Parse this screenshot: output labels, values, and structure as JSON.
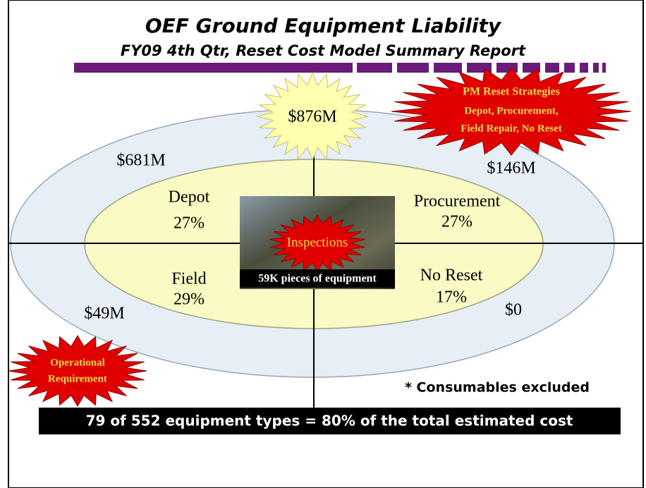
{
  "header": {
    "title": "OEF Ground Equipment Liability",
    "subtitle": "FY09 4th Qtr, Reset Cost Model Summary Report"
  },
  "total": "$876M",
  "strategies_burst": [
    "PM Reset Strategies",
    "Depot, Procurement,",
    "Field Repair, No Reset"
  ],
  "operational_burst": [
    "Operational",
    "Requirement"
  ],
  "quadrants": [
    {
      "name": "Depot",
      "share": "27%",
      "cost": "$681M"
    },
    {
      "name": "Procurement",
      "share": "27%",
      "cost": "$146M"
    },
    {
      "name": "Field",
      "share": "29%",
      "cost": "$49M"
    },
    {
      "name": "No Reset",
      "share": "17%",
      "cost": "$0"
    }
  ],
  "center": {
    "label": "Inspections",
    "caption": "59K pieces of equipment"
  },
  "note": "* Consumables excluded",
  "footer": "79 of 552 equipment types = 80% of  the total estimated cost"
}
